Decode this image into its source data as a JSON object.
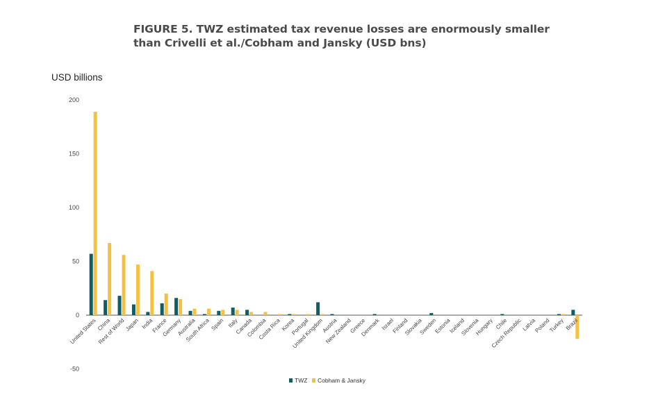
{
  "title_line1": "FIGURE 5. TWZ estimated tax revenue losses are enormously smaller",
  "title_line2": "than Crivelli et al./Cobham and Jansky (USD bns)",
  "colors": {
    "twz": "#0e5e63",
    "cj": "#f5c144",
    "axis": "#555555"
  },
  "chart_data": {
    "type": "bar",
    "ylabel": "USD billions",
    "ylim": [
      -50,
      200
    ],
    "yticks": [
      -50,
      0,
      50,
      100,
      150,
      200
    ],
    "legend_position": "bottom-center",
    "categories": [
      "United States",
      "China",
      "Rest of World",
      "Japan",
      "India",
      "France",
      "Germany",
      "Australia",
      "South Africa",
      "Spain",
      "Italy",
      "Canada",
      "Colombia",
      "Costa Rica",
      "Korea",
      "Portugal",
      "United Kingdom",
      "Austria",
      "New Zealand",
      "Greece",
      "Denmark",
      "Israel",
      "Finland",
      "Slovakia",
      "Sweden",
      "Estonia",
      "Iceland",
      "Slovenia",
      "Hungary",
      "Chile",
      "Czech Republic",
      "Latvia",
      "Poland",
      "Turkey",
      "Brazil"
    ],
    "series": [
      {
        "name": "TWZ",
        "values": [
          57,
          14,
          18,
          10,
          3,
          11,
          16,
          4,
          1,
          4,
          7,
          5,
          0,
          0,
          1,
          0,
          12,
          1,
          0,
          0,
          1,
          0,
          0,
          0,
          2,
          0,
          0,
          0,
          0,
          1,
          0,
          0,
          0,
          1,
          5
        ]
      },
      {
        "name": "Cobham & Jansky",
        "values": [
          189,
          67,
          56,
          47,
          41,
          20,
          15,
          6,
          6,
          5,
          5,
          3,
          3,
          1,
          1,
          1,
          1,
          0,
          0,
          0,
          0,
          0,
          0,
          0,
          0,
          0,
          0,
          0,
          0,
          0,
          0,
          0,
          0,
          1,
          -22
        ]
      }
    ]
  }
}
